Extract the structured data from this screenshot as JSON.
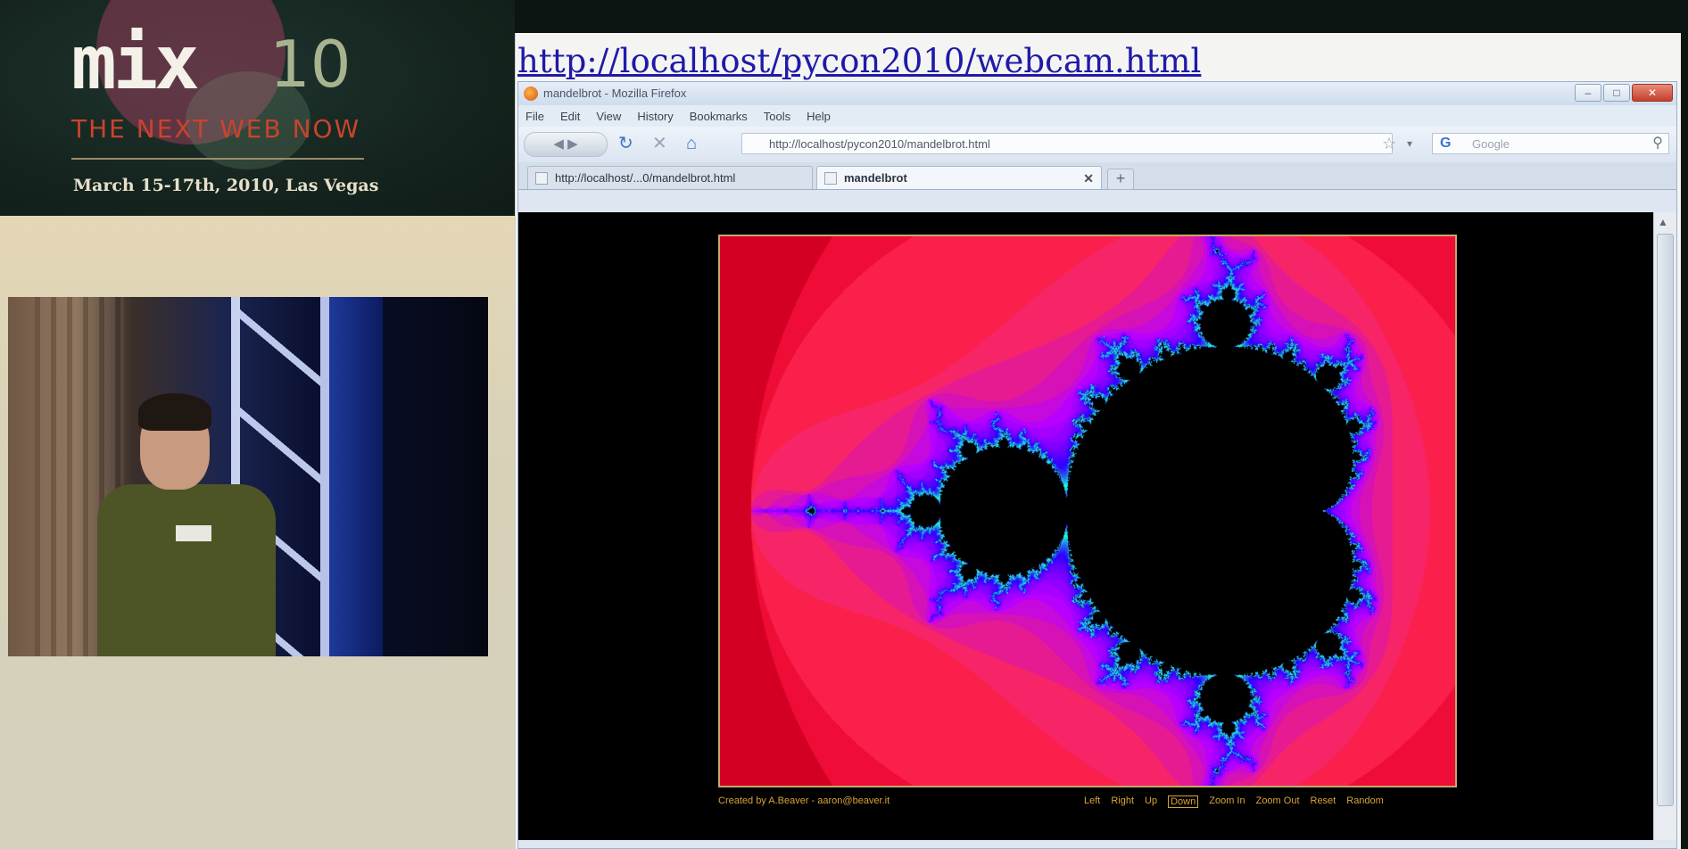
{
  "conference": {
    "logo_text": "mix",
    "logo_number": "10",
    "tagline": "THE NEXT WEB NOW",
    "dates": "March 15-17th, 2010, Las Vegas"
  },
  "slide": {
    "url_heading": "http://localhost/pycon2010/webcam.html"
  },
  "browser": {
    "title": "mandelbrot - Mozilla Firefox",
    "menu": [
      "File",
      "Edit",
      "View",
      "History",
      "Bookmarks",
      "Tools",
      "Help"
    ],
    "address": "http://localhost/pycon2010/mandelbrot.html",
    "search_placeholder": "Google",
    "tabs": [
      {
        "label": "http://localhost/...0/mandelbrot.html",
        "active": false
      },
      {
        "label": "mandelbrot",
        "active": true
      }
    ]
  },
  "page": {
    "credit": "Created by A.Beaver - aaron@beaver.it",
    "controls": [
      {
        "label": "Left",
        "active": false
      },
      {
        "label": "Right",
        "active": false
      },
      {
        "label": "Up",
        "active": false
      },
      {
        "label": "Down",
        "active": true
      },
      {
        "label": "Zoom In",
        "active": false
      },
      {
        "label": "Zoom Out",
        "active": false
      },
      {
        "label": "Reset",
        "active": false
      },
      {
        "label": "Random",
        "active": false
      }
    ],
    "fractal": {
      "view": {
        "re_min": -2.12,
        "re_max": 0.78,
        "im_min": -1.09,
        "im_max": 1.09
      },
      "max_iterations": 60,
      "colors": {
        "inside": "#000000",
        "outer": "#8e000c",
        "mid": "#e8002a",
        "near": "#ff2a55",
        "edge_violet": "#b800ff",
        "edge_blue": "#2a00ff",
        "edge_cyan": "#20ffd8"
      }
    }
  },
  "icons": {
    "back": "back-arrow-icon",
    "reload": "reload-icon",
    "stop": "stop-icon",
    "home": "home-icon",
    "bookmark": "star-icon",
    "search_engine": "google-icon",
    "search": "magnifier-icon"
  }
}
